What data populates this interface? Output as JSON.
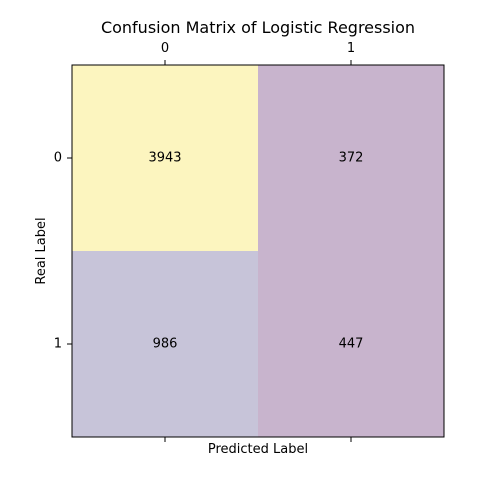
{
  "chart_data": {
    "type": "heatmap",
    "title": "Confusion Matrix of Logistic Regression",
    "xlabel": "Predicted Label",
    "ylabel": "Real Label",
    "x_categories": [
      "0",
      "1"
    ],
    "y_categories": [
      "0",
      "1"
    ],
    "values": [
      [
        3943,
        372
      ],
      [
        986,
        447
      ]
    ],
    "cell_labels": [
      [
        "3943",
        "372"
      ],
      [
        "986",
        "447"
      ]
    ],
    "cell_colors": [
      [
        "#fcf5bf",
        "#c8b4cd"
      ],
      [
        "#c7c4d9",
        "#c8b4cd"
      ]
    ],
    "grid": false,
    "x_tick_labels_position": "top"
  }
}
